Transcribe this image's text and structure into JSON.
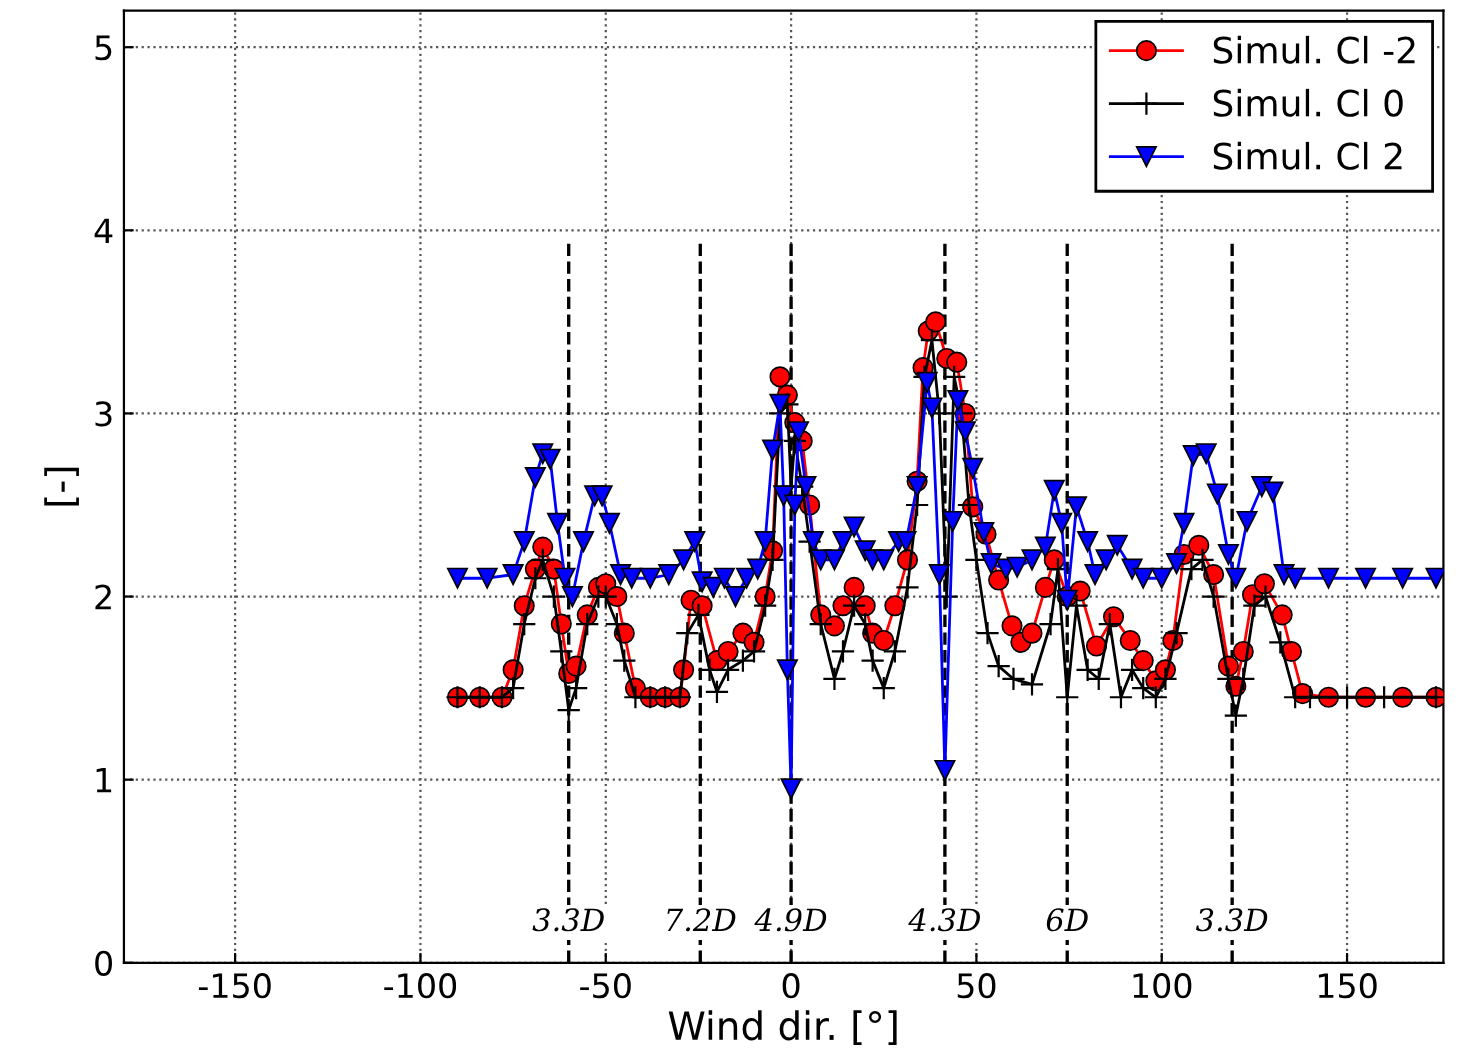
{
  "chart_data": {
    "type": "line",
    "xlabel": "Wind dir. [°]",
    "ylabel": "[-]",
    "xlim": [
      -180,
      176
    ],
    "ylim": [
      0,
      5.2
    ],
    "xticks": [
      -150,
      -100,
      -50,
      0,
      50,
      100,
      150
    ],
    "yticks": [
      0,
      1,
      2,
      3,
      4,
      5
    ],
    "grid": true,
    "legend": "top right",
    "line_style": "solid",
    "series": [
      {
        "name": "Simul. Cl -2",
        "color": "#ff0000",
        "marker": "circle",
        "x": [
          -90,
          -84,
          -78,
          -75,
          -72,
          -69,
          -67,
          -64,
          -62,
          -60,
          -58,
          -55,
          -52,
          -50,
          -47,
          -45,
          -42,
          -38,
          -34,
          -30,
          -29,
          -27,
          -24,
          -20,
          -17,
          -13,
          -10,
          -7,
          -5,
          -3,
          -1,
          1,
          3,
          5,
          8,
          11.7,
          14,
          17,
          20,
          22,
          25,
          28,
          31.4,
          34,
          35.6,
          37,
          39,
          42,
          44.7,
          47,
          49,
          52.6,
          56,
          59.6,
          62,
          65,
          68.6,
          71,
          74.5,
          78,
          82.4,
          87,
          91.5,
          95,
          98.4,
          101,
          103,
          106,
          110,
          114,
          118,
          120,
          122,
          124.5,
          127.7,
          132.5,
          135,
          138,
          145,
          155,
          165,
          174
        ],
        "values": [
          1.45,
          1.45,
          1.45,
          1.6,
          1.95,
          2.15,
          2.27,
          2.15,
          1.85,
          1.58,
          1.62,
          1.9,
          2.05,
          2.07,
          2.0,
          1.8,
          1.5,
          1.45,
          1.45,
          1.45,
          1.6,
          1.98,
          1.95,
          1.65,
          1.7,
          1.8,
          1.75,
          2.0,
          2.25,
          3.2,
          3.1,
          2.95,
          2.85,
          2.5,
          1.9,
          1.84,
          1.95,
          2.05,
          1.95,
          1.8,
          1.76,
          1.95,
          2.2,
          2.63,
          3.25,
          3.45,
          3.5,
          3.3,
          3.28,
          3.0,
          2.49,
          2.34,
          2.09,
          1.84,
          1.75,
          1.8,
          2.05,
          2.2,
          2.0,
          2.03,
          1.73,
          1.89,
          1.76,
          1.65,
          1.54,
          1.6,
          1.76,
          2.23,
          2.28,
          2.12,
          1.62,
          1.51,
          1.7,
          2.01,
          2.07,
          1.9,
          1.7,
          1.47,
          1.45,
          1.45,
          1.45,
          1.45
        ]
      },
      {
        "name": "Simul. Cl 0",
        "color": "#000000",
        "marker": "cross",
        "x": [
          -90,
          -84,
          -78,
          -75,
          -72,
          -69,
          -67,
          -64,
          -62,
          -60,
          -58,
          -55,
          -52,
          -50,
          -47,
          -45,
          -42,
          -38,
          -34,
          -30,
          -28,
          -25,
          -22,
          -20,
          -17,
          -13,
          -10,
          -7,
          -5,
          -3,
          -1,
          0,
          1,
          3,
          5,
          8,
          11.7,
          14,
          17,
          20,
          22,
          25,
          28,
          31.4,
          34,
          36,
          38,
          40,
          42,
          44,
          46,
          48,
          50,
          53,
          56,
          60,
          65,
          70,
          72,
          74.5,
          77,
          80,
          83,
          86,
          89,
          92,
          95,
          98.4,
          101,
          104,
          108,
          111,
          114,
          118,
          120,
          122,
          125,
          128,
          132,
          136,
          140,
          150,
          160,
          174
        ],
        "values": [
          1.45,
          1.45,
          1.45,
          1.5,
          1.85,
          2.1,
          2.2,
          2.0,
          1.7,
          1.38,
          1.5,
          1.85,
          2.0,
          2.0,
          1.85,
          1.65,
          1.45,
          1.45,
          1.45,
          1.45,
          1.8,
          1.9,
          1.6,
          1.48,
          1.6,
          1.65,
          1.7,
          1.95,
          2.2,
          3.0,
          3.05,
          2.6,
          2.85,
          2.6,
          2.3,
          1.85,
          1.55,
          1.7,
          1.95,
          1.85,
          1.65,
          1.5,
          1.7,
          2.05,
          2.5,
          3.2,
          3.4,
          3.0,
          2.0,
          3.2,
          3.0,
          2.5,
          2.2,
          1.8,
          1.62,
          1.55,
          1.52,
          1.85,
          2.15,
          1.45,
          1.95,
          1.6,
          1.55,
          1.85,
          1.45,
          1.6,
          1.5,
          1.45,
          1.55,
          1.8,
          2.15,
          2.2,
          2.0,
          1.55,
          1.35,
          1.55,
          1.95,
          2.0,
          1.75,
          1.45,
          1.45,
          1.45,
          1.45,
          1.45
        ]
      },
      {
        "name": "Simul. Cl 2",
        "color": "#0000ff",
        "marker": "triangle",
        "x": [
          -90,
          -82,
          -75,
          -72,
          -69,
          -67,
          -65,
          -63,
          -61,
          -59,
          -56,
          -53,
          -51,
          -49,
          -46,
          -43,
          -38,
          -33,
          -29,
          -26,
          -24,
          -21,
          -18,
          -15,
          -12,
          -9,
          -7,
          -5,
          -3,
          -2,
          -1,
          0,
          1,
          2,
          4,
          6,
          8,
          11.7,
          14,
          17,
          20,
          22,
          25,
          29,
          31,
          34,
          36.7,
          38,
          40,
          41.5,
          43.6,
          45,
          47,
          49,
          52,
          54,
          58,
          61,
          65,
          68.6,
          71,
          73,
          74.5,
          77,
          80,
          82,
          85,
          88,
          92,
          95,
          100,
          104,
          106,
          108.5,
          112,
          115,
          118,
          120,
          123,
          127,
          130,
          133,
          136,
          145,
          155,
          165,
          174
        ],
        "values": [
          2.1,
          2.1,
          2.12,
          2.3,
          2.65,
          2.78,
          2.75,
          2.4,
          2.1,
          2.0,
          2.3,
          2.55,
          2.55,
          2.4,
          2.12,
          2.1,
          2.1,
          2.12,
          2.2,
          2.3,
          2.08,
          2.05,
          2.1,
          2.0,
          2.1,
          2.15,
          2.3,
          2.8,
          3.05,
          2.55,
          1.6,
          0.95,
          2.5,
          2.9,
          2.6,
          2.3,
          2.2,
          2.2,
          2.3,
          2.38,
          2.25,
          2.2,
          2.2,
          2.3,
          2.3,
          2.6,
          3.17,
          3.03,
          2.12,
          1.05,
          2.41,
          3.07,
          2.9,
          2.7,
          2.35,
          2.18,
          2.15,
          2.16,
          2.2,
          2.27,
          2.58,
          2.4,
          1.98,
          2.49,
          2.3,
          2.12,
          2.2,
          2.28,
          2.15,
          2.1,
          2.1,
          2.18,
          2.4,
          2.77,
          2.78,
          2.56,
          2.23,
          2.1,
          2.41,
          2.6,
          2.57,
          2.12,
          2.1,
          2.1,
          2.1,
          2.1,
          2.1
        ]
      }
    ],
    "ref_lines": [
      {
        "axis": "x",
        "value": -60,
        "label": "3.3D",
        "color": "#000000",
        "line_style": "dashed"
      },
      {
        "axis": "x",
        "value": -24.5,
        "label": "7.2D",
        "color": "#000000",
        "line_style": "dashed"
      },
      {
        "axis": "x",
        "value": 0,
        "label": "4.9D",
        "color": "#000000",
        "line_style": "dashed"
      },
      {
        "axis": "x",
        "value": 41.5,
        "label": "4.3D",
        "color": "#000000",
        "line_style": "dashed"
      },
      {
        "axis": "x",
        "value": 74.5,
        "label": "6D",
        "color": "#000000",
        "line_style": "dashed"
      },
      {
        "axis": "x",
        "value": 119,
        "label": "3.3D",
        "color": "#000000",
        "line_style": "dashed"
      }
    ]
  }
}
